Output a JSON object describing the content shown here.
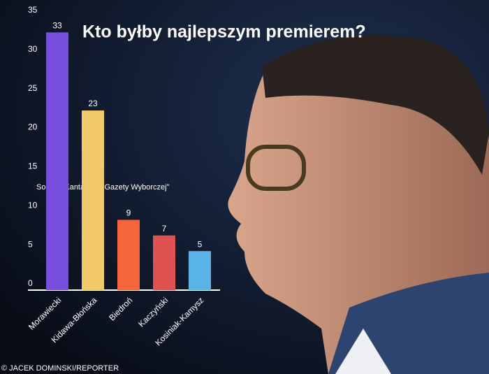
{
  "chart_data": {
    "type": "bar",
    "title": "Kto byłby najlepszym premierem?",
    "subtitle": "Sondaż Kantar dla \"Gazety Wyborczej\"",
    "credit": "© JACEK DOMINSKI/REPORTER",
    "categories": [
      "Morawiecki",
      "Kidawa-Błońska",
      "Biedroń",
      "Kaczyński",
      "Kosiniak-Kamysz"
    ],
    "values": [
      33,
      23,
      9,
      7,
      5
    ],
    "colors": [
      "#7650dd",
      "#f0c96a",
      "#f5643a",
      "#e05252",
      "#5ab4e8"
    ],
    "ylim": [
      0,
      35
    ],
    "yticks": [
      0,
      5,
      10,
      15,
      20,
      25,
      30,
      35
    ],
    "grid": false
  }
}
